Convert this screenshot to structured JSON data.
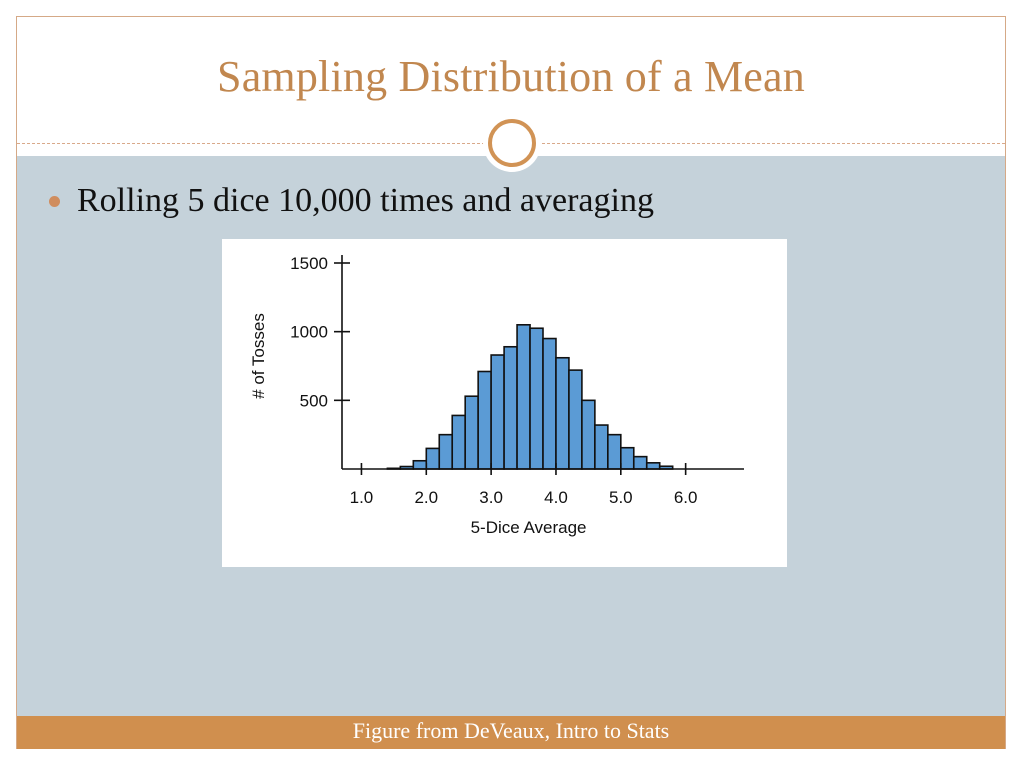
{
  "slide": {
    "title": "Sampling Distribution of a Mean",
    "bullet": "Rolling 5 dice 10,000 times and averaging",
    "footer": "Figure from DeVeaux, Intro to Stats"
  },
  "colors": {
    "title": "#c1874f",
    "content_background": "#c5d2da",
    "footer_background": "#d08f4e",
    "bar_fill": "#5b9bd5",
    "bar_stroke": "#111111"
  },
  "chart_data": {
    "type": "bar",
    "xlabel": "5-Dice Average",
    "ylabel": "# of Tosses",
    "xticks": [
      "1.0",
      "2.0",
      "3.0",
      "4.0",
      "5.0",
      "6.0"
    ],
    "yticks": [
      "500",
      "1000",
      "1500"
    ],
    "xlim": [
      0.7,
      6.9
    ],
    "ylim": [
      0,
      1500
    ],
    "bin_width": 0.2,
    "bin_starts": [
      1.4,
      1.6,
      1.8,
      2.0,
      2.2,
      2.4,
      2.6,
      2.8,
      3.0,
      3.2,
      3.4,
      3.6,
      3.8,
      4.0,
      4.2,
      4.4,
      4.6,
      4.8,
      5.0,
      5.2,
      5.4,
      5.6
    ],
    "values": [
      5,
      18,
      60,
      150,
      250,
      390,
      530,
      710,
      830,
      890,
      1050,
      1025,
      950,
      810,
      720,
      500,
      320,
      250,
      155,
      90,
      45,
      20
    ],
    "grid": false,
    "legend": "none"
  }
}
